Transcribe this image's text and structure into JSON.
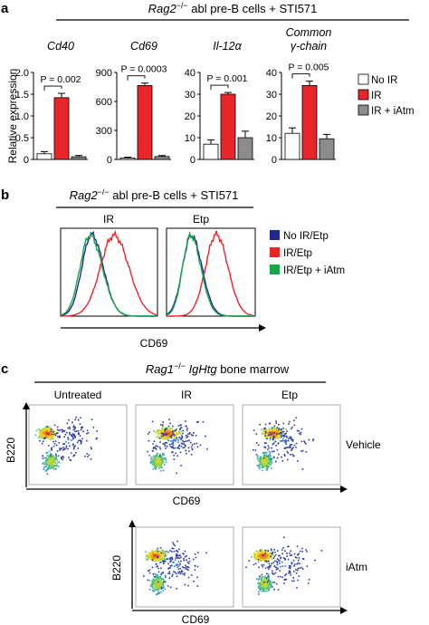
{
  "panel_a": {
    "letter": "a",
    "header": {
      "gene": "Rag2",
      "sup": "−/−",
      "rest": " abl pre-B cells + STI571"
    },
    "ylabel": "Relative expression",
    "legend": [
      {
        "label": "No IR",
        "color": "#ffffff"
      },
      {
        "label": "IR",
        "color": "#e8262a"
      },
      {
        "label": "IR + iAtm",
        "color": "#8c8c8c"
      }
    ]
  },
  "panel_b": {
    "letter": "b",
    "header": {
      "gene": "Rag2",
      "sup": "−/−",
      "rest": " abl pre-B cells + STI571"
    },
    "subtitles": [
      "IR",
      "Etp"
    ],
    "xlabel": "CD69",
    "legend": [
      {
        "label": "No IR/Etp",
        "color": "#1f2a8c"
      },
      {
        "label": "IR/Etp",
        "color": "#e8262a"
      },
      {
        "label": "IR/Etp + iAtm",
        "color": "#1aa64a"
      }
    ]
  },
  "panel_c": {
    "letter": "c",
    "header": {
      "gene": "Rag1",
      "sup": "−/−",
      "gene2": " IgHtg",
      "rest": " bone marrow"
    },
    "columns": [
      "Untreated",
      "IR",
      "Etp"
    ],
    "rows": [
      "Vehicle",
      "iAtm"
    ],
    "ylabel": "B220",
    "xlabel": "CD69"
  },
  "chart_data": [
    {
      "type": "bar",
      "title": "Cd40",
      "ylabel": "Relative expression",
      "categories": [
        "No IR",
        "IR",
        "IR + iAtm"
      ],
      "values": [
        0.13,
        1.42,
        0.06
      ],
      "errors": [
        0.05,
        0.1,
        0.03
      ],
      "ylim": [
        0,
        2
      ],
      "yticks": [
        "0",
        "0.5",
        "1.0",
        "1.5",
        "2.0"
      ],
      "annotation": "P = 0.002"
    },
    {
      "type": "bar",
      "title": "Cd69",
      "categories": [
        "No IR",
        "IR",
        "IR + iAtm"
      ],
      "values": [
        15,
        765,
        30
      ],
      "errors": [
        8,
        25,
        10
      ],
      "ylim": [
        0,
        900
      ],
      "yticks": [
        "0",
        "300",
        "600",
        "900"
      ],
      "annotation": "P = 0.0003"
    },
    {
      "type": "bar",
      "title": "Il-12α",
      "categories": [
        "No IR",
        "IR",
        "IR + iAtm"
      ],
      "values": [
        7,
        30,
        10
      ],
      "errors": [
        2,
        0.8,
        3
      ],
      "ylim": [
        0,
        40
      ],
      "yticks": [
        "0",
        "10",
        "20",
        "30",
        "40"
      ],
      "annotation": "P = 0.001"
    },
    {
      "type": "bar",
      "title": "Common γ-chain",
      "categories": [
        "No IR",
        "IR",
        "IR + iAtm"
      ],
      "values": [
        12,
        34,
        9.5
      ],
      "errors": [
        2.5,
        2,
        2
      ],
      "ylim": [
        0,
        40
      ],
      "yticks": [
        "0",
        "10",
        "20",
        "30",
        "40"
      ],
      "annotation": "P = 0.005"
    }
  ]
}
